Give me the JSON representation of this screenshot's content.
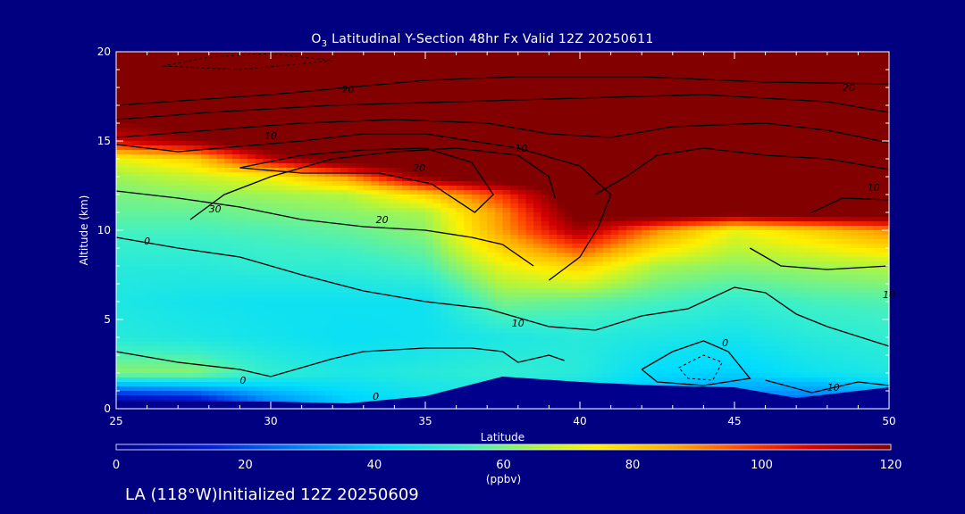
{
  "chart_data": {
    "type": "heatmap",
    "title": "O3 Latitudinal Y-Section 48hr  Fx Valid 12Z 20250611",
    "title_sub": "3",
    "xlabel": "Latitude",
    "ylabel": "Altitude (km)",
    "xlim": [
      25,
      50
    ],
    "ylim": [
      0,
      20
    ],
    "x_ticks": [
      "25",
      "30",
      "35",
      "40",
      "45",
      "50"
    ],
    "y_ticks": [
      "0",
      "5",
      "10",
      "15",
      "20"
    ],
    "colorbar": {
      "min": 0,
      "max": 120,
      "ticks": [
        "0",
        "20",
        "40",
        "60",
        "80",
        "100",
        "120"
      ],
      "unit_label": "(ppbv)"
    },
    "colors": {
      "background": "#000080",
      "min_color": "#00008c",
      "max_color": "#820000",
      "contour": "#000000",
      "text": "#ffffff"
    },
    "ozone_field_ppbv": {
      "description_levels": "rows low→high altitude",
      "latitudes": [
        25,
        27.5,
        30,
        32.5,
        35,
        37.5,
        40,
        42.5,
        45,
        47.5,
        50
      ],
      "altitudes_km": [
        0.5,
        2,
        4,
        6,
        8,
        10,
        11,
        12,
        13,
        14,
        15,
        17,
        20
      ],
      "values": [
        [
          5,
          10,
          30,
          40,
          45,
          45,
          40,
          35,
          30,
          25,
          30
        ],
        [
          62,
          62,
          52,
          48,
          50,
          52,
          50,
          42,
          40,
          45,
          48
        ],
        [
          50,
          48,
          46,
          44,
          45,
          48,
          50,
          48,
          46,
          50,
          52
        ],
        [
          48,
          46,
          45,
          45,
          45,
          60,
          58,
          55,
          52,
          55,
          56
        ],
        [
          50,
          50,
          52,
          52,
          55,
          72,
          80,
          65,
          62,
          64,
          66
        ],
        [
          55,
          55,
          56,
          58,
          62,
          88,
          115,
          90,
          72,
          80,
          90
        ],
        [
          58,
          58,
          60,
          62,
          65,
          90,
          125,
          130,
          125,
          130,
          130
        ],
        [
          60,
          62,
          64,
          66,
          80,
          100,
          130,
          130,
          130,
          130,
          130
        ],
        [
          64,
          68,
          74,
          90,
          120,
          130,
          130,
          130,
          130,
          130,
          130
        ],
        [
          72,
          80,
          110,
          130,
          130,
          130,
          130,
          130,
          130,
          130,
          130
        ],
        [
          108,
          118,
          130,
          130,
          130,
          130,
          130,
          130,
          130,
          130,
          130
        ],
        [
          130,
          130,
          130,
          130,
          130,
          130,
          130,
          130,
          130,
          130,
          130
        ],
        [
          130,
          130,
          130,
          130,
          130,
          130,
          130,
          130,
          130,
          130,
          130
        ]
      ]
    },
    "terrain_km": [
      [
        25,
        0.4
      ],
      [
        30,
        0.4
      ],
      [
        32.5,
        0.3
      ],
      [
        35,
        0.7
      ],
      [
        37.5,
        1.8
      ],
      [
        40,
        1.5
      ],
      [
        42.5,
        1.3
      ],
      [
        45,
        1.2
      ],
      [
        47,
        0.6
      ],
      [
        50,
        1.2
      ]
    ],
    "contour_labels": [
      "0",
      "10",
      "20",
      "30",
      "20",
      "10",
      "20",
      "10",
      "0",
      "10",
      "20",
      "10",
      "0",
      "0",
      "10"
    ]
  },
  "footer": "LA (118°W)Initialized 12Z 20250609"
}
